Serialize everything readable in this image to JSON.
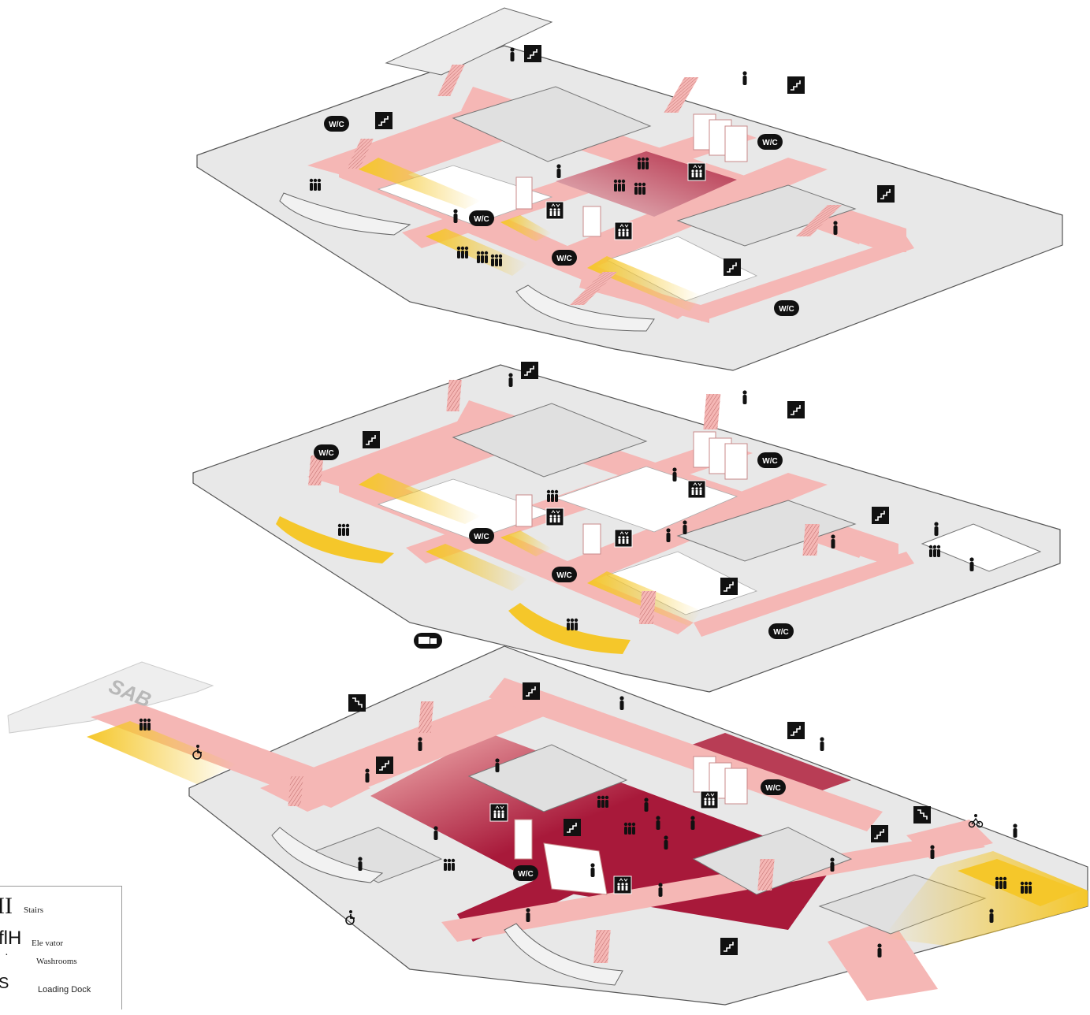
{
  "building_label": "SAB",
  "floors": [
    {
      "name": "upper-floor"
    },
    {
      "name": "middle-floor"
    },
    {
      "name": "ground-floor"
    }
  ],
  "icons": {
    "washroom": "W/C",
    "stairs": "stairs-icon",
    "elevator": "elevator-icon",
    "loading_dock": "truck-icon",
    "exit": "exit-stairs-icon",
    "accessible": "wheelchair-icon",
    "bike": "bicycle-icon"
  },
  "colors": {
    "corridor": "#f5b7b5",
    "main_hall": "#a8193a",
    "study_area": "#f5c72a",
    "room": "#e6e6e6",
    "outline": "#555555"
  },
  "legend": {
    "items": [
      {
        "glyph": "II",
        "label": "Stairs"
      },
      {
        "glyph": "flH",
        "label": "Ele vator"
      },
      {
        "glyph": "·",
        "label": "Washrooms"
      },
      {
        "glyph": "S",
        "label": "Loading Dock"
      }
    ]
  }
}
